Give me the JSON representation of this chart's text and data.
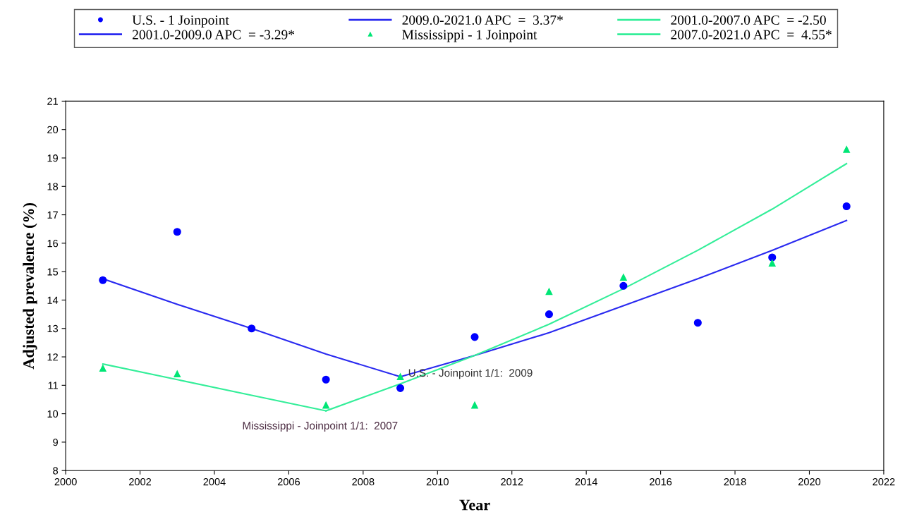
{
  "chart_data": {
    "type": "scatter",
    "xlabel": "Year",
    "ylabel": "Adjusted prevalence (%)",
    "xlim": [
      2000,
      2022
    ],
    "xticks": [
      2000,
      2002,
      2004,
      2006,
      2008,
      2010,
      2012,
      2014,
      2016,
      2018,
      2020,
      2022
    ],
    "ylim": [
      8,
      21
    ],
    "yticks": [
      8,
      9,
      10,
      11,
      12,
      13,
      14,
      15,
      16,
      17,
      18,
      19,
      20,
      21
    ],
    "grid": false,
    "legend": "top",
    "series": [
      {
        "name": "U.S. - 1 Joinpoint",
        "marker": "circle",
        "color": "#0000ff",
        "x": [
          2001,
          2003,
          2005,
          2007,
          2009,
          2011,
          2013,
          2015,
          2017,
          2019,
          2021
        ],
        "values": [
          14.7,
          16.4,
          13.0,
          11.2,
          10.9,
          12.7,
          13.5,
          14.5,
          13.2,
          15.5,
          17.3
        ]
      },
      {
        "name": "2001.0-2009.0 APC  = -3.29*",
        "type": "line",
        "marker": "none",
        "line_style": "solid",
        "color": "#2a2af0",
        "x": [
          2001,
          2003,
          2005,
          2007,
          2009
        ],
        "values": [
          14.75,
          13.85,
          13.0,
          12.1,
          11.3
        ]
      },
      {
        "name": "2009.0-2021.0 APC  =  3.37*",
        "type": "line",
        "marker": "none",
        "line_style": "solid",
        "color": "#2a2af0",
        "x": [
          2009,
          2011,
          2013,
          2015,
          2017,
          2019,
          2021
        ],
        "values": [
          11.3,
          12.05,
          12.85,
          13.8,
          14.75,
          15.75,
          16.8
        ]
      },
      {
        "name": "Mississippi - 1 Joinpoint",
        "marker": "triangle",
        "color": "#00e676",
        "x": [
          2001,
          2003,
          2007,
          2009,
          2011,
          2013,
          2015,
          2019,
          2021
        ],
        "values": [
          11.6,
          11.4,
          10.3,
          11.3,
          10.3,
          14.3,
          14.8,
          15.3,
          19.3
        ]
      },
      {
        "name": "2001.0-2007.0 APC  = -2.50",
        "type": "line",
        "marker": "none",
        "line_style": "solid",
        "color": "#33ee99",
        "x": [
          2001,
          2003,
          2005,
          2007
        ],
        "values": [
          11.75,
          11.2,
          10.65,
          10.1
        ]
      },
      {
        "name": "2007.0-2021.0 APC  =  4.55*",
        "type": "line",
        "marker": "none",
        "line_style": "solid",
        "color": "#33ee99",
        "x": [
          2007,
          2009,
          2011,
          2013,
          2015,
          2017,
          2019,
          2021
        ],
        "values": [
          10.1,
          11.05,
          12.05,
          13.15,
          14.4,
          15.75,
          17.2,
          18.8
        ]
      }
    ],
    "annotations": [
      {
        "text": "U.S. - Joinpoint 1/1:  2009",
        "x": 2009,
        "y": 11.3
      },
      {
        "text": "Mississippi - Joinpoint 1/1:  2007",
        "x": 2007,
        "y": 10.1
      }
    ]
  }
}
